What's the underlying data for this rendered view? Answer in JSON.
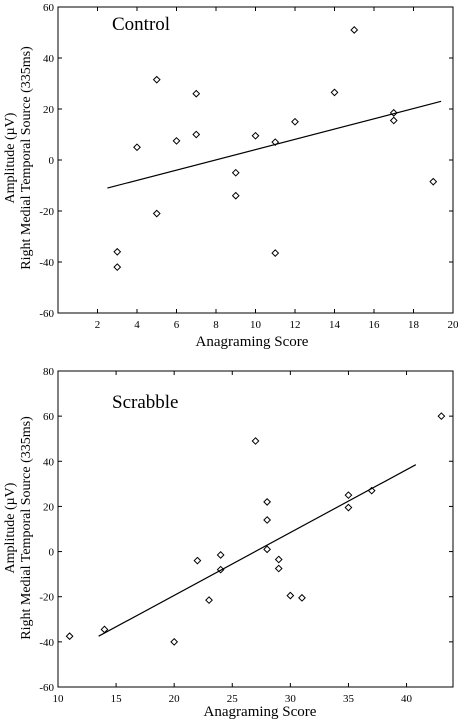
{
  "chart_data": [
    {
      "type": "scatter",
      "title": "Control",
      "xlabel": "Anagraming Score",
      "ylabel_line1": "Amplitude  (µV)",
      "ylabel_line2": "Right Medial Temporal Source (335ms)",
      "xlim": [
        0,
        20
      ],
      "ylim": [
        -60,
        60
      ],
      "xticks": [
        2,
        4,
        6,
        8,
        10,
        12,
        14,
        16,
        18,
        20
      ],
      "yticks": [
        -60,
        -40,
        -20,
        0,
        20,
        40,
        60
      ],
      "xtick_labels": [
        "2",
        "4",
        "6",
        "8",
        "10",
        "12",
        "14",
        "16",
        "18",
        "20"
      ],
      "ytick_labels": [
        "-60",
        "-40",
        "-20",
        "0",
        "20",
        "40",
        "60"
      ],
      "points": [
        {
          "x": 3,
          "y": -36
        },
        {
          "x": 3,
          "y": -42
        },
        {
          "x": 4,
          "y": 5
        },
        {
          "x": 5,
          "y": 31.5
        },
        {
          "x": 5,
          "y": -21
        },
        {
          "x": 6,
          "y": 7.5
        },
        {
          "x": 7,
          "y": 26
        },
        {
          "x": 7,
          "y": 10
        },
        {
          "x": 9,
          "y": -5
        },
        {
          "x": 9,
          "y": -14
        },
        {
          "x": 10,
          "y": 9.5
        },
        {
          "x": 11,
          "y": 7
        },
        {
          "x": 11,
          "y": -36.5
        },
        {
          "x": 12,
          "y": 15
        },
        {
          "x": 14,
          "y": 26.5
        },
        {
          "x": 15,
          "y": 51
        },
        {
          "x": 17,
          "y": 18.5
        },
        {
          "x": 17,
          "y": 15.5
        },
        {
          "x": 19,
          "y": -8.5
        }
      ],
      "fit_line": {
        "x": [
          2.5,
          19.4
        ],
        "y": [
          -11,
          23
        ]
      },
      "grid": false,
      "legend": "none"
    },
    {
      "type": "scatter",
      "title": "Scrabble",
      "xlabel": "Anagraming Score",
      "ylabel_line1": "Amplitude  (µV)",
      "ylabel_line2": "Right Medial Temporal Source (335ms)",
      "xlim": [
        10,
        44
      ],
      "ylim": [
        -60,
        80
      ],
      "xticks": [
        10,
        15,
        20,
        25,
        30,
        35,
        40
      ],
      "yticks": [
        -60,
        -40,
        -20,
        0,
        20,
        40,
        60,
        80
      ],
      "xtick_labels": [
        "10",
        "15",
        "20",
        "25",
        "30",
        "35",
        "40"
      ],
      "ytick_labels": [
        "-60",
        "-40",
        "-20",
        "0",
        "20",
        "40",
        "60",
        "80"
      ],
      "points": [
        {
          "x": 11,
          "y": -37.5
        },
        {
          "x": 14,
          "y": -34.5
        },
        {
          "x": 20,
          "y": -40
        },
        {
          "x": 22,
          "y": -4
        },
        {
          "x": 23,
          "y": -21.5
        },
        {
          "x": 24,
          "y": -1.5
        },
        {
          "x": 24,
          "y": -8
        },
        {
          "x": 27,
          "y": 49
        },
        {
          "x": 28,
          "y": 22
        },
        {
          "x": 28,
          "y": 14
        },
        {
          "x": 28,
          "y": 1
        },
        {
          "x": 29,
          "y": -3.5
        },
        {
          "x": 29,
          "y": -7.5
        },
        {
          "x": 30,
          "y": -19.5
        },
        {
          "x": 31,
          "y": -20.5
        },
        {
          "x": 35,
          "y": 25
        },
        {
          "x": 35,
          "y": 19.5
        },
        {
          "x": 37,
          "y": 27
        },
        {
          "x": 43,
          "y": 60
        }
      ],
      "fit_line": {
        "x": [
          13.5,
          40.8
        ],
        "y": [
          -37.5,
          38.5
        ]
      },
      "grid": false,
      "legend": "none"
    }
  ]
}
